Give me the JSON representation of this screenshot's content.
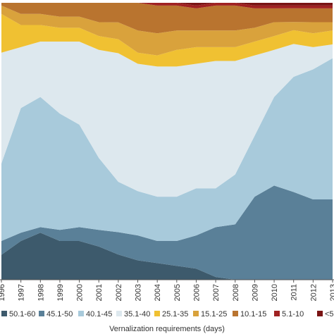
{
  "chart_data": {
    "type": "area",
    "stacked": "percent",
    "xlabel": "Vernalization requirements (days)",
    "x": [
      "1996",
      "1997",
      "1998",
      "1999",
      "2000",
      "2001",
      "2002",
      "2003",
      "2004",
      "2005",
      "2006",
      "2007",
      "2008",
      "2009",
      "2010",
      "2011",
      "2012",
      "2013"
    ],
    "ylim": [
      0,
      100
    ],
    "legend_position": "bottom",
    "series": [
      {
        "name": "50.1-60",
        "color": "#3d5a6c",
        "values": [
          9,
          14,
          17,
          14,
          14,
          12,
          9,
          7,
          6,
          5,
          4,
          1,
          0,
          0,
          0,
          0,
          0,
          0
        ]
      },
      {
        "name": "45.1-50",
        "color": "#5a8098",
        "values": [
          5,
          3,
          2,
          4,
          5,
          6,
          8,
          9,
          8,
          9,
          12,
          18,
          20,
          30,
          34,
          32,
          29,
          29
        ]
      },
      {
        "name": "40.1-45",
        "color": "#a8cadb",
        "values": [
          28,
          45,
          47,
          42,
          37,
          26,
          18,
          16,
          16,
          16,
          17,
          14,
          18,
          22,
          32,
          42,
          47,
          51
        ]
      },
      {
        "name": "35.1-40",
        "color": "#dde8ee",
        "values": [
          40,
          22,
          20,
          26,
          30,
          39,
          46,
          46,
          47,
          47,
          45,
          46,
          41,
          29,
          17,
          12,
          8,
          5
        ]
      },
      {
        "name": "25.1-35",
        "color": "#f0c132",
        "values": [
          14,
          8,
          6,
          5,
          5,
          5,
          5,
          4,
          4,
          6,
          6,
          5,
          5,
          5,
          5,
          5,
          5,
          5
        ]
      },
      {
        "name": "15.1-25",
        "color": "#d9a23c",
        "values": [
          3,
          4,
          4,
          4,
          4,
          5,
          6,
          8,
          8,
          7,
          6,
          6,
          6,
          5,
          5,
          3,
          4,
          3
        ]
      },
      {
        "name": "10.1-15",
        "color": "#b9742f",
        "values": [
          1,
          4,
          4,
          5,
          5,
          7,
          7,
          10,
          10,
          9,
          8,
          9,
          9,
          7,
          5,
          5,
          5,
          5
        ]
      },
      {
        "name": "5.1-10",
        "color": "#a02222",
        "values": [
          0,
          0,
          0,
          0,
          0,
          0,
          0,
          0,
          1,
          1,
          1,
          1,
          1,
          1,
          1,
          1,
          1,
          1
        ]
      },
      {
        "name": "<5",
        "color": "#7a1414",
        "values": [
          0,
          0,
          0,
          0,
          0,
          0,
          0,
          0,
          0,
          0,
          1,
          0,
          0,
          1,
          1,
          1,
          1,
          1
        ]
      }
    ]
  }
}
